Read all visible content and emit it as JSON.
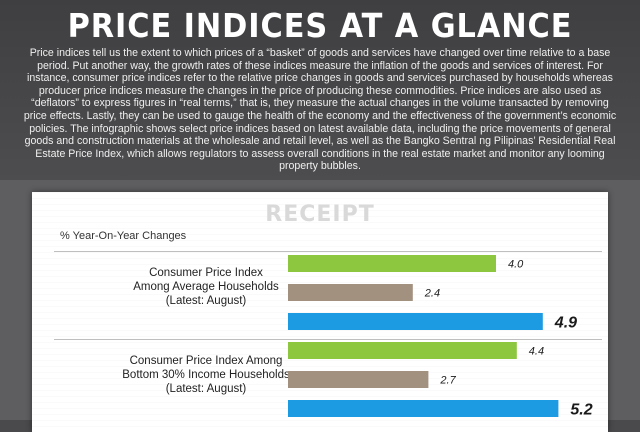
{
  "header": {
    "title": "PRICE INDICES AT A GLANCE",
    "intro": "Price indices tell us the extent to which prices of a “basket” of goods and services have changed over time relative to a base period. Put another way, the growth rates of these indices measure the inflation of the goods and services of interest. For instance, consumer price indices refer to the relative price changes in goods and services purchased by households whereas producer price indices measure the changes in the price of producing these commodities. Price indices are also used as “deflators” to express figures in “real terms,” that is, they measure the actual changes in the volume transacted by removing price effects. Lastly, they can be used to gauge the health of the economy and the effectiveness of the government’s economic policies. The infographic shows select price indices based on latest available data, including the price movements of general goods and construction materials at the wholesale and retail level, as well as the Bangko Sentral ng Pilipinas’ Residential Real Estate Price Index, which allows regulators to assess overall conditions in the real estate market and monitor any looming property bubbles."
  },
  "receipt": {
    "label": "RECEIPT"
  },
  "colors": {
    "green": "#8dc63f",
    "taupe": "#a39180",
    "blue": "#1c9be3"
  },
  "chart_data": {
    "type": "bar",
    "orientation": "horizontal",
    "subtitle": "% Year-On-Year Changes",
    "groups": [
      {
        "label_lines": [
          "Consumer Price Index",
          "Among Average Households",
          "(Latest: August)"
        ],
        "values": [
          4.0,
          2.4,
          4.9
        ],
        "labels": [
          "4.0",
          "2.4",
          "4.9"
        ],
        "colors": [
          "#8dc63f",
          "#a39180",
          "#1c9be3"
        ]
      },
      {
        "label_lines": [
          "Consumer Price Index Among",
          "Bottom 30% Income Households",
          "(Latest: August)"
        ],
        "values": [
          4.4,
          2.7,
          5.2
        ],
        "labels": [
          "4.4",
          "2.7",
          "5.2"
        ],
        "colors": [
          "#8dc63f",
          "#a39180",
          "#1c9be3"
        ]
      }
    ]
  }
}
